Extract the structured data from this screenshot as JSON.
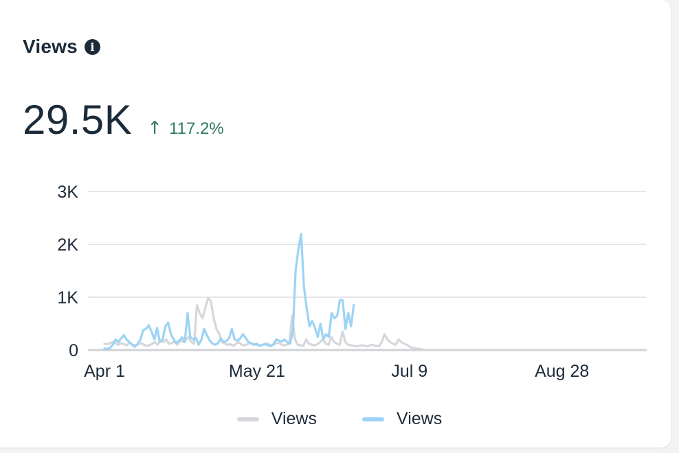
{
  "card": {
    "title": "Views",
    "info_icon": "info-icon",
    "total": "29.5K",
    "delta_arrow": "↑",
    "delta_text": "117.2%",
    "delta_color": "#2e7d5b"
  },
  "chart_data": {
    "type": "line",
    "x_axis": {
      "tick_labels": [
        "Apr 1",
        "May 21",
        "Jul 9",
        "Aug 28"
      ],
      "start": "Apr 1",
      "days": 174
    },
    "y_axis": {
      "tick_labels": [
        "0",
        "1K",
        "2K",
        "3K"
      ],
      "ylim": [
        0,
        3000
      ]
    },
    "grid": true,
    "legend": "bottom",
    "series": [
      {
        "name": "Views",
        "color": "#d5d7db",
        "values": [
          120,
          110,
          130,
          150,
          120,
          100,
          130,
          110,
          90,
          140,
          100,
          90,
          110,
          130,
          100,
          80,
          90,
          120,
          150,
          100,
          180,
          150,
          200,
          120,
          130,
          160,
          100,
          180,
          150,
          190,
          250,
          150,
          120,
          850,
          700,
          600,
          800,
          980,
          920,
          600,
          400,
          300,
          150,
          120,
          100,
          110,
          80,
          120,
          150,
          100,
          90,
          110,
          140,
          120,
          100,
          90,
          80,
          110,
          130,
          100,
          90,
          120,
          140,
          110,
          90,
          100,
          130,
          650,
          200,
          100,
          90,
          80,
          200,
          120,
          100,
          90,
          110,
          150,
          200,
          120,
          100,
          250,
          150,
          120,
          100,
          350,
          150,
          100,
          90,
          80,
          70,
          80,
          90,
          80,
          70,
          100,
          90,
          80,
          70,
          150,
          300,
          200,
          150,
          120,
          100,
          200,
          150,
          120,
          100,
          60,
          40,
          30,
          20,
          20
        ]
      },
      {
        "name": "Views",
        "color": "#9dd3f5",
        "values": [
          30,
          20,
          40,
          100,
          200,
          150,
          220,
          280,
          200,
          150,
          100,
          60,
          120,
          200,
          380,
          400,
          470,
          350,
          200,
          420,
          150,
          200,
          450,
          520,
          300,
          200,
          130,
          180,
          240,
          150,
          700,
          250,
          200,
          230,
          100,
          200,
          400,
          280,
          180,
          120,
          100,
          130,
          220,
          150,
          170,
          230,
          400,
          200,
          180,
          220,
          300,
          230,
          150,
          120,
          100,
          120,
          80,
          100,
          110,
          90,
          70,
          110,
          200,
          180,
          160,
          200,
          150,
          120,
          350,
          1500,
          1900,
          2200,
          1200,
          800,
          450,
          550,
          420,
          250,
          500,
          200,
          300,
          250,
          700,
          600,
          650,
          950,
          940,
          400,
          700,
          450,
          850
        ]
      }
    ]
  }
}
